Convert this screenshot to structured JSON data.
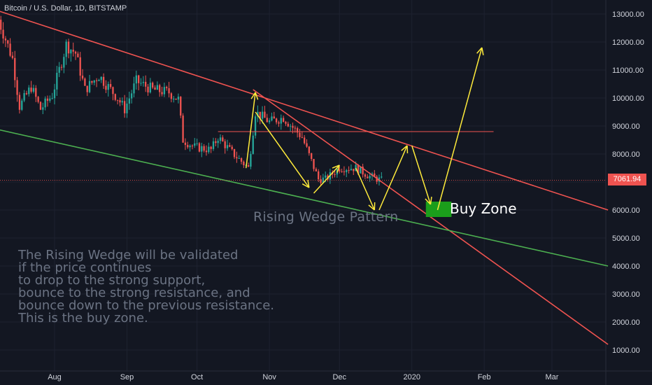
{
  "header": {
    "symbol": "Bitcoin / U.S. Dollar, 1D, BITSTAMP"
  },
  "annotations": {
    "wedge_label": "Rising Wedge Pattern",
    "buy_zone_label": "Buy Zone",
    "note_lines": [
      "The Rising Wedge will be validated",
      "if the price continues",
      "to drop to the strong support,",
      "bounce to the strong resistance, and",
      "bounce down to the previous resistance.",
      "This is the buy zone."
    ]
  },
  "colors": {
    "background": "#131722",
    "up_candle": "#26a69a",
    "down_candle": "#ef5350",
    "trendline": "#ef5350",
    "support": "#4caf50",
    "arrows": "#ffeb3b",
    "buy_zone": "#1b9e1b",
    "axis_text": "#d1d4dc"
  },
  "chart_data": {
    "type": "candlestick",
    "title": "Bitcoin / U.S. Dollar, 1D, BITSTAMP",
    "x_tick_labels": [
      "Aug",
      "Sep",
      "Oct",
      "Nov",
      "Dec",
      "2020",
      "Feb",
      "Mar"
    ],
    "x_tick_dates": [
      "2019-08-01",
      "2019-09-01",
      "2019-10-01",
      "2019-11-01",
      "2019-12-01",
      "2020-01-01",
      "2020-02-01",
      "2020-03-01"
    ],
    "y_tick_labels": [
      "13000.00",
      "12000.00",
      "11000.00",
      "10000.00",
      "9000.00",
      "8000.00",
      "7000.00",
      "6000.00",
      "5000.00",
      "4000.00",
      "3000.00",
      "2000.00",
      "1000.00"
    ],
    "y_ticks": [
      13000,
      12000,
      11000,
      10000,
      9000,
      8000,
      7000,
      6000,
      5000,
      4000,
      3000,
      2000,
      1000
    ],
    "last_price": 7061.94,
    "last_price_label": "7061.94",
    "price_path": [
      [
        "2019-07-08",
        12800
      ],
      [
        "2019-07-14",
        11400
      ],
      [
        "2019-07-17",
        9700
      ],
      [
        "2019-07-22",
        10400
      ],
      [
        "2019-07-26",
        9600
      ],
      [
        "2019-07-31",
        10100
      ],
      [
        "2019-08-06",
        11900
      ],
      [
        "2019-08-10",
        11600
      ],
      [
        "2019-08-14",
        10300
      ],
      [
        "2019-08-20",
        10800
      ],
      [
        "2019-08-28",
        10000
      ],
      [
        "2019-08-31",
        9600
      ],
      [
        "2019-09-05",
        10600
      ],
      [
        "2019-09-12",
        10300
      ],
      [
        "2019-09-19",
        10200
      ],
      [
        "2019-09-23",
        9950
      ],
      [
        "2019-09-25",
        8500
      ],
      [
        "2019-09-30",
        8250
      ],
      [
        "2019-10-07",
        8150
      ],
      [
        "2019-10-10",
        8600
      ],
      [
        "2019-10-16",
        8050
      ],
      [
        "2019-10-23",
        7500
      ],
      [
        "2019-10-26",
        9500
      ],
      [
        "2019-11-01",
        9150
      ],
      [
        "2019-11-07",
        9300
      ],
      [
        "2019-11-15",
        8600
      ],
      [
        "2019-11-22",
        7100
      ],
      [
        "2019-11-25",
        7100
      ],
      [
        "2019-12-01",
        7500
      ],
      [
        "2019-12-08",
        7500
      ],
      [
        "2019-12-14",
        7200
      ],
      [
        "2019-12-19",
        7061
      ]
    ],
    "trendlines": [
      {
        "name": "upper-resistance",
        "points": [
          [
            "2019-07-01",
            13300
          ],
          [
            "2020-03-25",
            6000
          ]
        ]
      },
      {
        "name": "steep-resistance",
        "points": [
          [
            "2019-10-25",
            10300
          ],
          [
            "2020-03-25",
            1200
          ]
        ]
      },
      {
        "name": "support",
        "points": [
          [
            "2019-07-01",
            9000
          ],
          [
            "2020-03-25",
            4000
          ]
        ]
      }
    ],
    "horizontal_levels": [
      {
        "name": "previous-resistance",
        "from": "2019-10-10",
        "to": "2020-02-05",
        "price": 8800
      },
      {
        "name": "current-price",
        "price": 7061.94
      }
    ],
    "buy_zone": {
      "from": "2020-01-07",
      "to": "2020-01-18",
      "low": 5750,
      "high": 6300
    }
  }
}
